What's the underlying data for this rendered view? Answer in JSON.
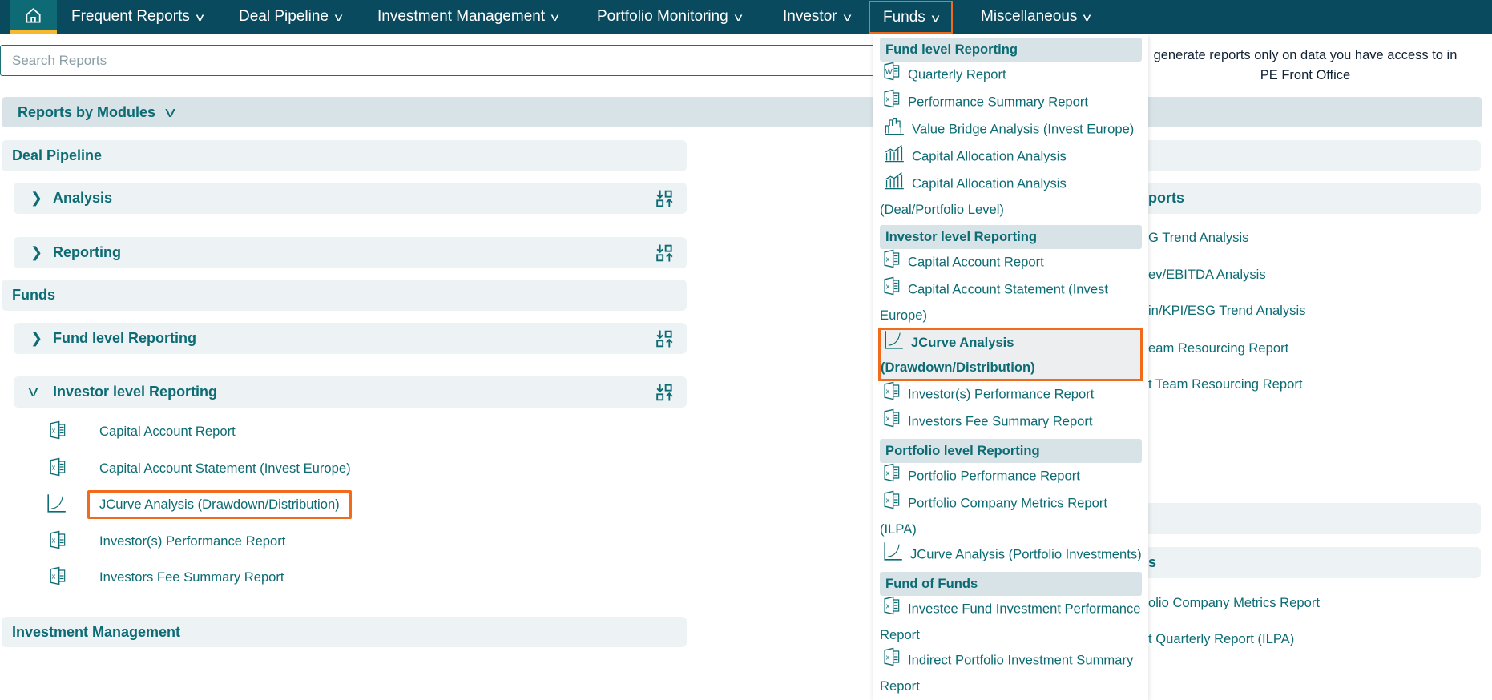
{
  "nav": {
    "home_icon": "home-icon",
    "items": [
      {
        "label": "Frequent Reports"
      },
      {
        "label": "Deal Pipeline"
      },
      {
        "label": "Investment Management"
      },
      {
        "label": "Portfolio Monitoring"
      },
      {
        "label": "Investor"
      },
      {
        "label": "Funds",
        "active": true
      },
      {
        "label": "Miscellaneous"
      }
    ]
  },
  "search": {
    "placeholder": "Search Reports",
    "value": ""
  },
  "notice": {
    "line1": "generate reports only on data you have access to in",
    "line2": "PE Front Office"
  },
  "modules_bar": {
    "label": "Reports by Modules"
  },
  "left": {
    "deal_pipeline": {
      "title": "Deal Pipeline",
      "groups": [
        {
          "label": "Analysis"
        },
        {
          "label": "Reporting"
        }
      ]
    },
    "funds": {
      "title": "Funds",
      "groups": [
        {
          "label": "Fund level Reporting",
          "expanded": false
        },
        {
          "label": "Investor level Reporting",
          "expanded": true
        }
      ],
      "investor_items": [
        {
          "label": "Capital Account Report",
          "icon": "excel-icon"
        },
        {
          "label": "Capital Account Statement (Invest Europe)",
          "icon": "excel-icon"
        },
        {
          "label": "JCurve Analysis (Drawdown/Distribution)",
          "icon": "jcurve-chart-icon",
          "highlighted": true
        },
        {
          "label": "Investor(s) Performance Report",
          "icon": "excel-icon"
        },
        {
          "label": "Investors Fee Summary Report",
          "icon": "excel-icon"
        }
      ]
    },
    "investment_management": {
      "title": "Investment Management"
    }
  },
  "right_partial": {
    "section1": "ports",
    "items1": [
      "G Trend Analysis",
      "ev/EBITDA Analysis",
      "in/KPI/ESG Trend Analysis",
      "eam Resourcing Report",
      "t Team Resourcing Report"
    ],
    "section2": "s",
    "items2": [
      "olio Company Metrics Report",
      "t Quarterly Report (ILPA)"
    ]
  },
  "dropdown": {
    "groups": [
      {
        "title": "Fund level Reporting",
        "items": [
          {
            "label": "Quarterly Report",
            "icon": "word-icon"
          },
          {
            "label": "Performance Summary Report",
            "icon": "excel-icon"
          },
          {
            "label": "Value Bridge Analysis (Invest Europe)",
            "icon": "value-bridge-chart-icon"
          },
          {
            "label": "Capital Allocation Analysis",
            "icon": "bar-chart-icon"
          },
          {
            "label": "Capital Allocation Analysis (Deal/Portfolio Level)",
            "icon": "bar-chart-icon"
          }
        ]
      },
      {
        "title": "Investor level Reporting",
        "items": [
          {
            "label": "Capital Account Report",
            "icon": "excel-icon"
          },
          {
            "label": "Capital Account Statement (Invest Europe)",
            "icon": "excel-icon"
          },
          {
            "label": "JCurve Analysis (Drawdown/Distribution)",
            "icon": "jcurve-chart-icon",
            "selected": true
          },
          {
            "label": "Investor(s) Performance Report",
            "icon": "excel-icon"
          },
          {
            "label": "Investors Fee Summary Report",
            "icon": "excel-icon"
          }
        ]
      },
      {
        "title": "Portfolio level Reporting",
        "items": [
          {
            "label": "Portfolio Performance Report",
            "icon": "excel-icon"
          },
          {
            "label": "Portfolio Company Metrics Report (ILPA)",
            "icon": "excel-icon"
          },
          {
            "label": "JCurve Analysis (Portfolio Investments)",
            "icon": "jcurve-chart-icon"
          }
        ]
      },
      {
        "title": "Fund of Funds",
        "items": [
          {
            "label": "Investee Fund Investment Performance Report",
            "icon": "excel-icon"
          },
          {
            "label": "Indirect Portfolio Investment Summary Report",
            "icon": "excel-icon"
          }
        ]
      }
    ]
  },
  "colors": {
    "nav_bg": "#0a4a5e",
    "accent": "#0c6b73",
    "highlight": "#f26a1b",
    "home_underline": "#f5b82e"
  }
}
